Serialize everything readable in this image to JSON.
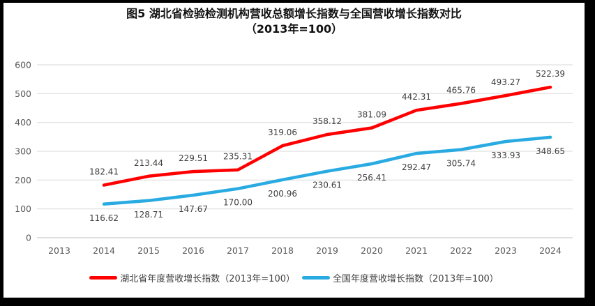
{
  "window": {
    "frame_color": "#000000",
    "background": "#ffffff"
  },
  "title": {
    "line1": "图5 湖北省检验检测机构营收总额增长指数与全国营收增长指数对比",
    "line2": "（2013年=100）"
  },
  "chart_data": {
    "type": "line",
    "categories": [
      "2013",
      "2014",
      "2015",
      "2016",
      "2017",
      "2018",
      "2019",
      "2020",
      "2021",
      "2022",
      "2023",
      "2024"
    ],
    "series": [
      {
        "name": "湖北省年度营收增长指数（2013年=100）",
        "color": "#fe0000",
        "label_position": "above",
        "values": [
          null,
          182.41,
          213.44,
          229.51,
          235.31,
          319.06,
          358.12,
          381.09,
          442.31,
          465.76,
          493.27,
          522.39
        ]
      },
      {
        "name": "全国年度营收增长指数（2013年=100）",
        "color": "#29abe2",
        "label_position": "below",
        "values": [
          null,
          116.62,
          128.71,
          147.67,
          170.0,
          200.96,
          230.61,
          256.41,
          292.47,
          305.74,
          333.93,
          348.65
        ]
      }
    ],
    "title": "图5 湖北省检验检测机构营收总额增长指数与全国营收增长指数对比（2013年=100）",
    "xlabel": "",
    "ylabel": "",
    "ylim": [
      0,
      600
    ],
    "yticks": [
      0,
      100,
      200,
      300,
      400,
      500,
      600
    ],
    "grid": "horizontal",
    "legend_position": "bottom",
    "data_labels": true,
    "data_label_decimals": 2
  },
  "style": {
    "grid_color": "#d9d9d9",
    "axis_color": "#bdbdbd",
    "tick_color": "#595959",
    "data_label_color": "#3f3f3f"
  }
}
